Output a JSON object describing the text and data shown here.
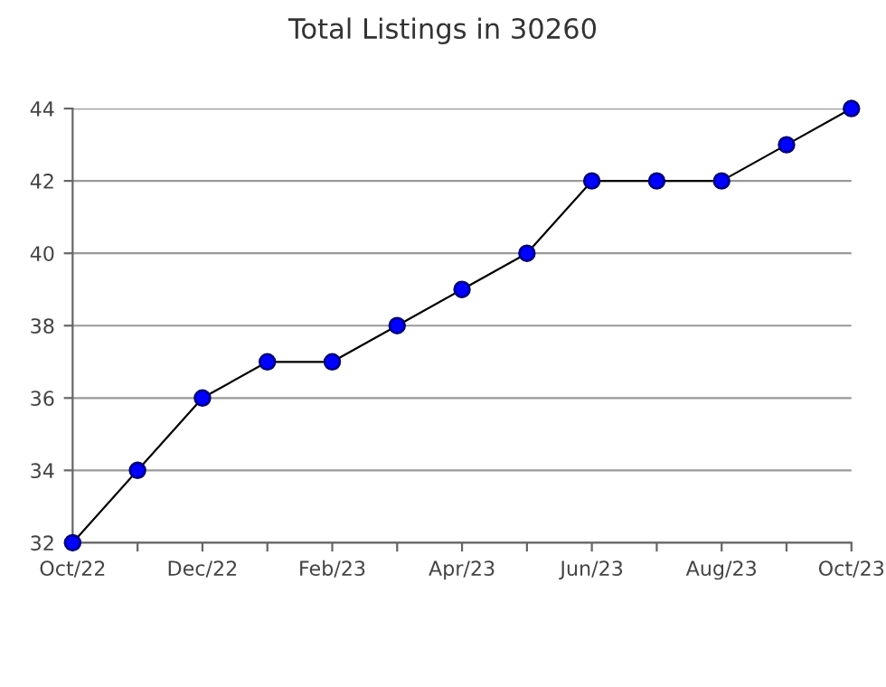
{
  "chart_data": {
    "type": "line",
    "title": "Total Listings in 30260",
    "categories": [
      "Oct/22",
      null,
      "Dec/22",
      null,
      "Feb/23",
      null,
      "Apr/23",
      null,
      "Jun/23",
      null,
      "Aug/23",
      null,
      "Oct/23"
    ],
    "series": [
      {
        "color": "#0000ff",
        "values": [
          32,
          34,
          36,
          37,
          37,
          38,
          39,
          40,
          42,
          42,
          42,
          43,
          44
        ]
      }
    ],
    "ylim": [
      32,
      44
    ],
    "yticks": [
      32,
      34,
      36,
      38,
      40,
      42,
      44
    ],
    "grid": "y",
    "marker": "circle",
    "line_style": "solid"
  }
}
